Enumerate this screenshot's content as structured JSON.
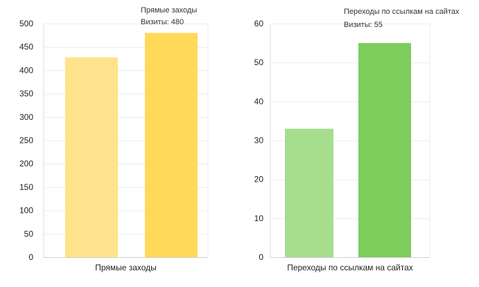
{
  "chart_data": [
    {
      "type": "bar",
      "categories": [
        "Прямые заходы",
        "Прямые заходы"
      ],
      "values": [
        428,
        480
      ],
      "colors": [
        "#ffe38c",
        "#ffd95a"
      ],
      "category_label": "Прямые заходы",
      "yticks": [
        "0",
        "50",
        "100",
        "150",
        "200",
        "250",
        "300",
        "350",
        "400",
        "450",
        "500"
      ],
      "ylim": [
        0,
        500
      ],
      "grid": true,
      "tooltip": {
        "title": "Прямые заходы",
        "value_text": "Визиты: 480"
      }
    },
    {
      "type": "bar",
      "categories": [
        "Переходы по ссылкам на сайтах",
        "Переходы по ссылкам на сайтах"
      ],
      "values": [
        33,
        55
      ],
      "colors": [
        "#a6de8e",
        "#7dcd5d"
      ],
      "category_label": "Переходы по ссылкам на сайтах",
      "yticks": [
        "0",
        "10",
        "20",
        "30",
        "40",
        "50",
        "60"
      ],
      "ylim": [
        0,
        60
      ],
      "grid": true,
      "tooltip": {
        "title": "Переходы по ссылкам на сайтах",
        "value_text": "Визиты: 55"
      }
    }
  ]
}
